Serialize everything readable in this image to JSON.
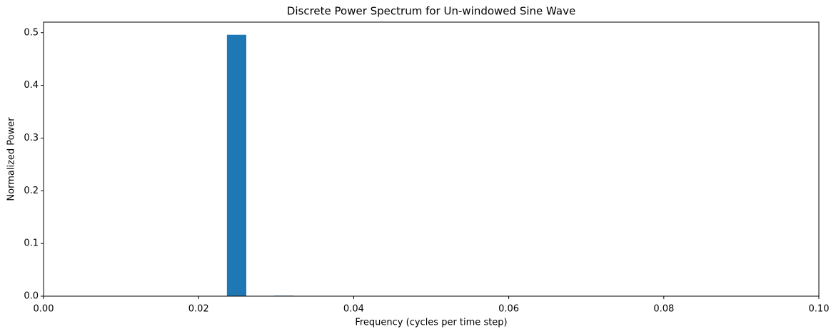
{
  "chart_data": {
    "type": "bar",
    "title": "Discrete Power Spectrum for Un-windowed Sine Wave",
    "x_label": "Frequency (cycles per time step)",
    "y_label": "Normalized Power",
    "x": [
      0.0249,
      0.031
    ],
    "values": [
      0.496,
      0.001
    ],
    "bar_width": 0.0025,
    "color": "#1f77b4",
    "xlim": [
      0,
      0.1
    ],
    "xticks": [
      {
        "value": 0,
        "label": "0.00"
      },
      {
        "value": 0.02,
        "label": "0.02"
      },
      {
        "value": 0.04,
        "label": "0.04"
      },
      {
        "value": 0.06,
        "label": "0.06"
      },
      {
        "value": 0.08,
        "label": "0.08"
      },
      {
        "value": 0.1,
        "label": "0.10"
      }
    ],
    "ylim": [
      0,
      0.52
    ],
    "yticks": [
      {
        "value": 0,
        "label": "0.0"
      },
      0.1,
      0.2,
      0.3,
      0.4,
      0.5
    ],
    "grid": false
  }
}
